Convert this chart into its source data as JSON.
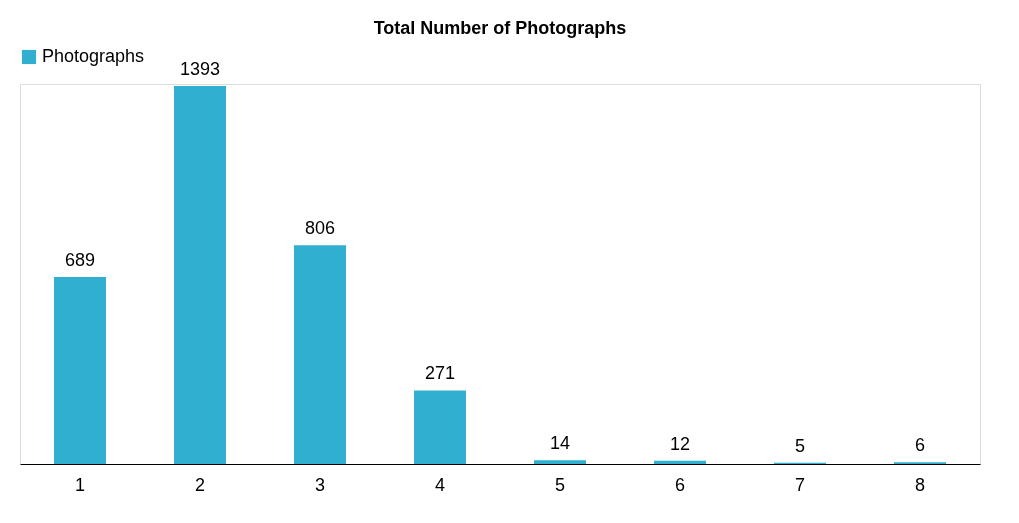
{
  "chart_data": {
    "type": "bar",
    "title": "Total Number of Photographs",
    "categories": [
      "1",
      "2",
      "3",
      "4",
      "5",
      "6",
      "7",
      "8"
    ],
    "series": [
      {
        "name": "Photographs",
        "color": "#31afd0",
        "values": [
          689,
          1393,
          806,
          271,
          14,
          12,
          5,
          6
        ]
      }
    ],
    "data_labels": true,
    "legend": "top",
    "grid": false,
    "tick_labels": "x"
  }
}
